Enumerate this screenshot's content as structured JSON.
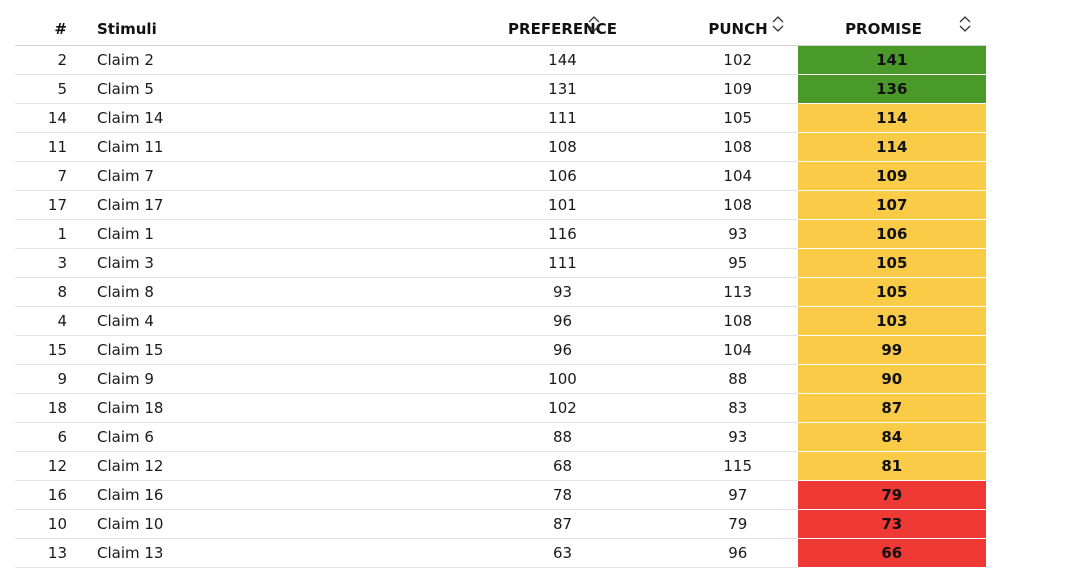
{
  "table": {
    "headers": {
      "num": "#",
      "stimuli": "Stimuli",
      "preference": "PREFERENCE",
      "punch": "PUNCH",
      "promise": "PROMISE"
    },
    "sort_icon": "sort-updown-icon",
    "colors": {
      "high": "#4a9a2a",
      "mid": "#f9cb47",
      "low": "#ee3935"
    },
    "rows": [
      {
        "num": "2",
        "stimuli": "Claim 2",
        "preference": "144",
        "punch": "102",
        "promise": "141",
        "level": "high"
      },
      {
        "num": "5",
        "stimuli": "Claim 5",
        "preference": "131",
        "punch": "109",
        "promise": "136",
        "level": "high"
      },
      {
        "num": "14",
        "stimuli": "Claim 14",
        "preference": "111",
        "punch": "105",
        "promise": "114",
        "level": "mid"
      },
      {
        "num": "11",
        "stimuli": "Claim 11",
        "preference": "108",
        "punch": "108",
        "promise": "114",
        "level": "mid"
      },
      {
        "num": "7",
        "stimuli": "Claim 7",
        "preference": "106",
        "punch": "104",
        "promise": "109",
        "level": "mid"
      },
      {
        "num": "17",
        "stimuli": "Claim 17",
        "preference": "101",
        "punch": "108",
        "promise": "107",
        "level": "mid"
      },
      {
        "num": "1",
        "stimuli": "Claim 1",
        "preference": "116",
        "punch": "93",
        "promise": "106",
        "level": "mid"
      },
      {
        "num": "3",
        "stimuli": "Claim 3",
        "preference": "111",
        "punch": "95",
        "promise": "105",
        "level": "mid"
      },
      {
        "num": "8",
        "stimuli": "Claim 8",
        "preference": "93",
        "punch": "113",
        "promise": "105",
        "level": "mid"
      },
      {
        "num": "4",
        "stimuli": "Claim 4",
        "preference": "96",
        "punch": "108",
        "promise": "103",
        "level": "mid"
      },
      {
        "num": "15",
        "stimuli": "Claim 15",
        "preference": "96",
        "punch": "104",
        "promise": "99",
        "level": "mid"
      },
      {
        "num": "9",
        "stimuli": "Claim 9",
        "preference": "100",
        "punch": "88",
        "promise": "90",
        "level": "mid"
      },
      {
        "num": "18",
        "stimuli": "Claim 18",
        "preference": "102",
        "punch": "83",
        "promise": "87",
        "level": "mid"
      },
      {
        "num": "6",
        "stimuli": "Claim 6",
        "preference": "88",
        "punch": "93",
        "promise": "84",
        "level": "mid"
      },
      {
        "num": "12",
        "stimuli": "Claim 12",
        "preference": "68",
        "punch": "115",
        "promise": "81",
        "level": "mid"
      },
      {
        "num": "16",
        "stimuli": "Claim 16",
        "preference": "78",
        "punch": "97",
        "promise": "79",
        "level": "low"
      },
      {
        "num": "10",
        "stimuli": "Claim 10",
        "preference": "87",
        "punch": "79",
        "promise": "73",
        "level": "low"
      },
      {
        "num": "13",
        "stimuli": "Claim 13",
        "preference": "63",
        "punch": "96",
        "promise": "66",
        "level": "low"
      }
    ]
  }
}
